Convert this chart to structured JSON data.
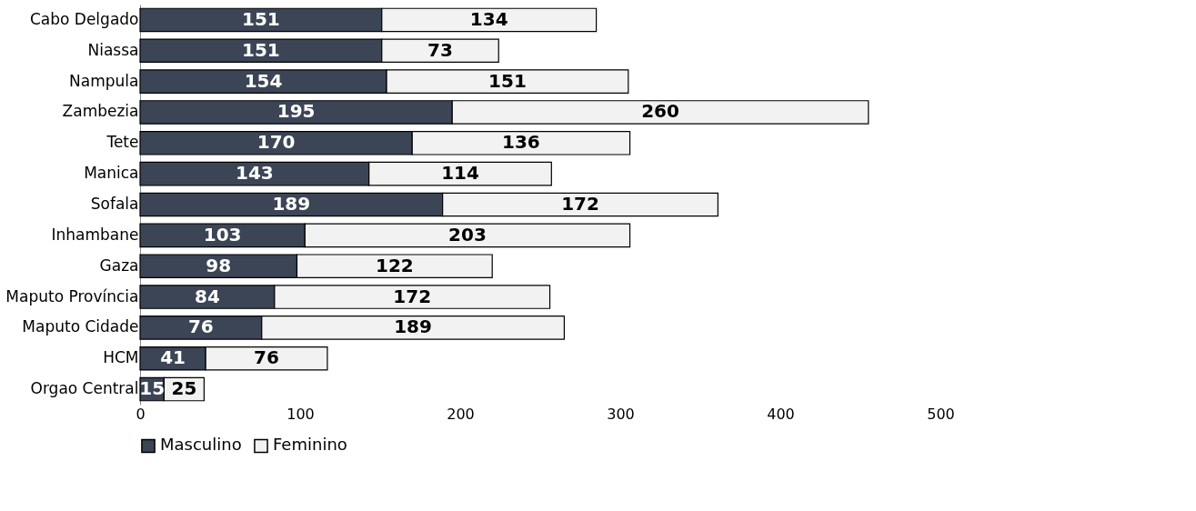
{
  "chart_data": {
    "type": "bar",
    "orientation": "horizontal",
    "stacked": true,
    "categories": [
      "Cabo Delgado",
      "Niassa",
      "Nampula",
      "Zambezia",
      "Tete",
      "Manica",
      "Sofala",
      "Inhambane",
      "Gaza",
      "Maputo Província",
      "Maputo Cidade",
      "HCM",
      "Orgao Central"
    ],
    "series": [
      {
        "name": "Masculino",
        "color": "#3b4556",
        "values": [
          151,
          151,
          154,
          195,
          170,
          143,
          189,
          103,
          98,
          84,
          76,
          41,
          15
        ]
      },
      {
        "name": "Feminino",
        "color": "#f2f2f2",
        "values": [
          134,
          73,
          151,
          260,
          136,
          114,
          172,
          203,
          122,
          172,
          189,
          76,
          25
        ]
      }
    ],
    "xlim": [
      0,
      500
    ],
    "xticks": [
      0,
      100,
      200,
      300,
      400,
      500
    ],
    "grid": false,
    "legend": "bottom",
    "data_labels": true
  }
}
